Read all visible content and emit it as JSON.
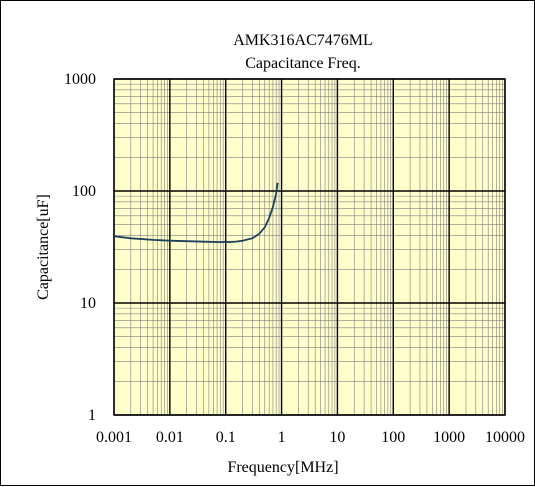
{
  "chart_data": {
    "type": "line",
    "title": "AMK316AC7476ML",
    "subtitle": "Capacitance Freq.",
    "xlabel": "Frequency[MHz]",
    "ylabel": "Capacitance[uF]",
    "x_scale": "log",
    "y_scale": "log",
    "xlim": [
      0.001,
      10000
    ],
    "ylim": [
      1,
      1000
    ],
    "x_ticks": [
      "0.001",
      "0.01",
      "0.1",
      "1",
      "10",
      "100",
      "1000",
      "10000"
    ],
    "y_ticks": [
      "1",
      "10",
      "100",
      "1000"
    ],
    "grid": true,
    "plot_background": "#ffffcc",
    "series": [
      {
        "color": "#1f3f5a",
        "x": [
          0.001,
          0.002,
          0.005,
          0.01,
          0.02,
          0.05,
          0.09,
          0.1,
          0.11,
          0.15,
          0.2,
          0.3,
          0.4,
          0.5,
          0.6,
          0.7,
          0.8,
          0.85
        ],
        "y": [
          39.5,
          37.8,
          36.6,
          36.0,
          35.6,
          35.2,
          35.0,
          35.4,
          34.9,
          35.3,
          35.9,
          37.8,
          41.5,
          47.5,
          57.5,
          72.0,
          95.0,
          118.0
        ]
      }
    ]
  }
}
